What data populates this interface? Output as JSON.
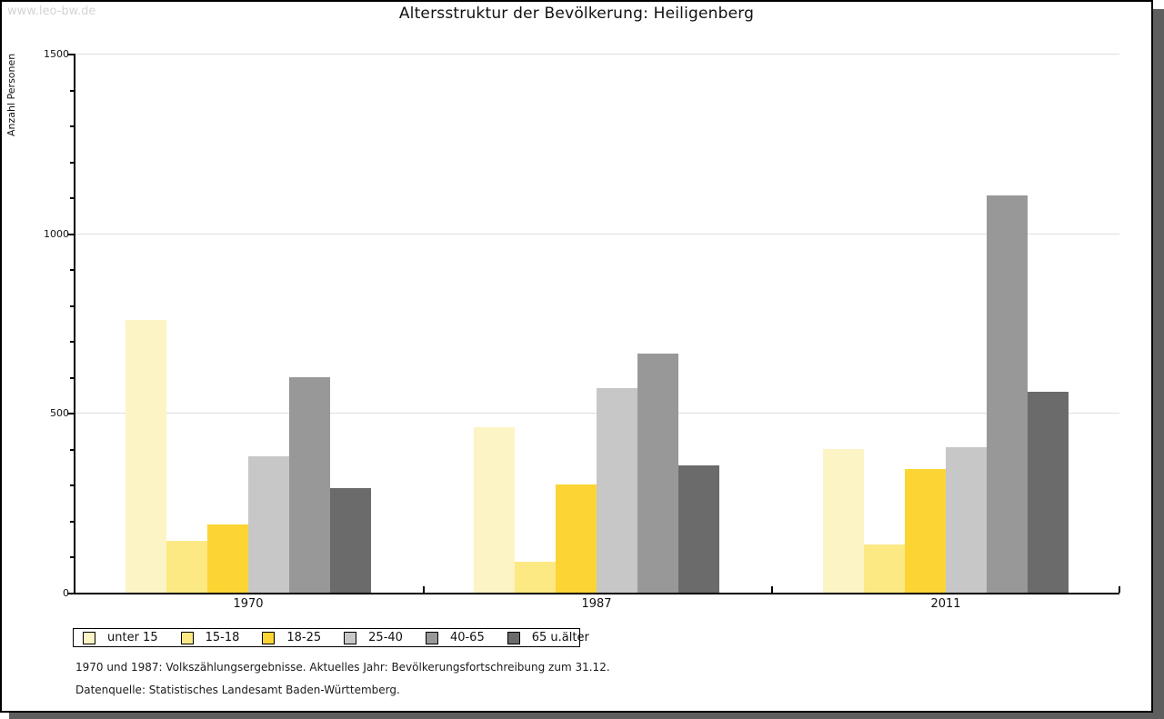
{
  "watermark": "www.leo-bw.de",
  "title": "Altersstruktur der Bevölkerung: Heiligenberg",
  "chart_data": {
    "type": "bar",
    "title": "Altersstruktur der Bevölkerung: Heiligenberg",
    "xlabel": "",
    "ylabel": "Anzahl Personen",
    "categories": [
      "1970",
      "1987",
      "2011"
    ],
    "series": [
      {
        "name": "unter 15",
        "color": "#FCF4C5",
        "values": [
          760,
          460,
          400
        ]
      },
      {
        "name": "15-18",
        "color": "#FCE984",
        "values": [
          145,
          85,
          135
        ]
      },
      {
        "name": "18-25",
        "color": "#FCD535",
        "values": [
          190,
          300,
          345
        ]
      },
      {
        "name": "25-40",
        "color": "#C7C7C7",
        "values": [
          380,
          570,
          405
        ]
      },
      {
        "name": "40-65",
        "color": "#989898",
        "values": [
          600,
          665,
          1105
        ]
      },
      {
        "name": "65 u.älter",
        "color": "#6B6B6B",
        "values": [
          290,
          355,
          560
        ]
      }
    ],
    "ylim": [
      0,
      1500
    ],
    "yticks_major": [
      0,
      500,
      1000,
      1500
    ],
    "ytick_minor_step": 100,
    "grid": true,
    "legend_position": "bottom-left",
    "axis_color": "#000000",
    "gridline_color": "#dedede"
  },
  "footer": {
    "line1": "1970 und 1987: Volkszählungsergebnisse. Aktuelles Jahr: Bevölkerungsfortschreibung zum 31.12.",
    "line2": "Datenquelle: Statistisches Landesamt Baden-Württemberg."
  }
}
